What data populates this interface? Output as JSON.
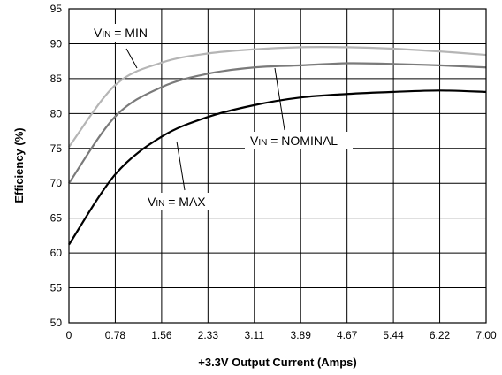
{
  "chart_data": {
    "type": "line",
    "title": "",
    "xlabel": "+3.3V Output Current (Amps)",
    "ylabel": "Efficiency (%)",
    "x_tick_labels": [
      "0",
      "0.78",
      "1.56",
      "2.33",
      "3.11",
      "3.89",
      "4.67",
      "5.44",
      "6.22",
      "7.00"
    ],
    "y_ticks": [
      50,
      55,
      60,
      65,
      70,
      75,
      80,
      85,
      90,
      95
    ],
    "xlim": [
      0,
      7.0
    ],
    "ylim": [
      50,
      95
    ],
    "grid": true,
    "series": [
      {
        "key": "min",
        "color": "#b5b5b5",
        "x": [
          0,
          0.78,
          1.56,
          2.33,
          3.11,
          3.89,
          4.67,
          5.44,
          6.22,
          7.0
        ],
        "y": [
          75.2,
          84.1,
          87.3,
          88.6,
          89.2,
          89.5,
          89.5,
          89.3,
          88.9,
          88.4
        ]
      },
      {
        "key": "nominal",
        "color": "#7a7a7a",
        "x": [
          0,
          0.78,
          1.56,
          2.33,
          3.11,
          3.89,
          4.67,
          5.44,
          6.22,
          7.0
        ],
        "y": [
          70.0,
          79.6,
          83.8,
          85.7,
          86.6,
          86.9,
          87.2,
          87.1,
          86.9,
          86.6
        ]
      },
      {
        "key": "max",
        "color": "#000000",
        "x": [
          0,
          0.78,
          1.56,
          2.33,
          3.11,
          3.89,
          4.67,
          5.44,
          6.22,
          7.0
        ],
        "y": [
          61.2,
          71.3,
          76.7,
          79.5,
          81.2,
          82.3,
          82.8,
          83.1,
          83.3,
          83.1
        ]
      }
    ],
    "annotations": [
      {
        "key": "min",
        "prefix": "V",
        "sub": "IN",
        "suffix": " = MIN"
      },
      {
        "key": "nominal",
        "prefix": "V",
        "sub": "IN",
        "suffix": " = NOMINAL"
      },
      {
        "key": "max",
        "prefix": "V",
        "sub": "IN",
        "suffix": " = MAX"
      }
    ]
  }
}
